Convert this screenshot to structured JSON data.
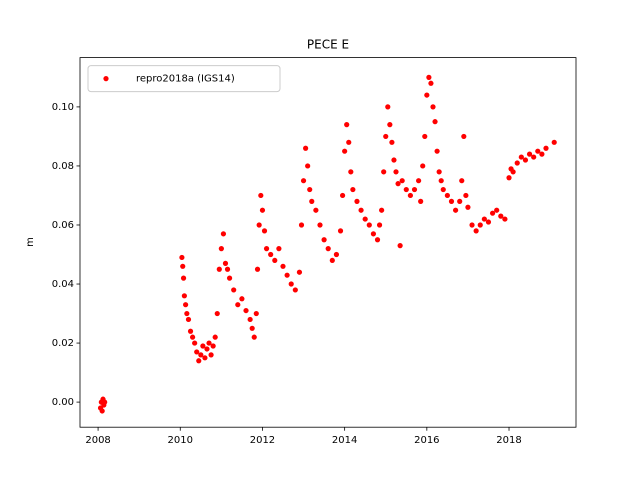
{
  "chart_data": {
    "type": "scatter",
    "title": "PECE E",
    "y_label": "m",
    "legend": "upper left",
    "marker_size": 2.6,
    "x": [
      2008.06,
      2008.08,
      2008.1,
      2008.12,
      2008.14,
      2008.16,
      2010.04,
      2010.06,
      2010.08,
      2010.1,
      2010.13,
      2010.16,
      2010.2,
      2010.25,
      2010.3,
      2010.35,
      2010.4,
      2010.45,
      2010.5,
      2010.55,
      2010.6,
      2010.65,
      2010.7,
      2010.75,
      2010.8,
      2010.85,
      2010.9,
      2010.95,
      2011.0,
      2011.05,
      2011.1,
      2011.15,
      2011.2,
      2011.3,
      2011.4,
      2011.5,
      2011.6,
      2011.7,
      2011.75,
      2011.8,
      2011.85,
      2011.88,
      2011.92,
      2011.96,
      2012.0,
      2012.05,
      2012.1,
      2012.2,
      2012.3,
      2012.4,
      2012.5,
      2012.6,
      2012.7,
      2012.8,
      2012.9,
      2012.95,
      2013.0,
      2013.05,
      2013.1,
      2013.15,
      2013.2,
      2013.3,
      2013.4,
      2013.5,
      2013.6,
      2013.7,
      2013.8,
      2013.9,
      2013.95,
      2014.0,
      2014.05,
      2014.1,
      2014.15,
      2014.2,
      2014.3,
      2014.4,
      2014.5,
      2014.6,
      2014.7,
      2014.8,
      2014.85,
      2014.9,
      2014.95,
      2015.0,
      2015.05,
      2015.1,
      2015.15,
      2015.2,
      2015.25,
      2015.3,
      2015.35,
      2015.4,
      2015.5,
      2015.6,
      2015.7,
      2015.8,
      2015.85,
      2015.9,
      2015.95,
      2016.0,
      2016.05,
      2016.1,
      2016.15,
      2016.2,
      2016.25,
      2016.3,
      2016.35,
      2016.4,
      2016.5,
      2016.6,
      2016.7,
      2016.8,
      2016.85,
      2016.9,
      2016.95,
      2017.0,
      2017.1,
      2017.2,
      2017.3,
      2017.4,
      2017.5,
      2017.6,
      2017.7,
      2017.8,
      2017.9,
      2018.0,
      2018.05,
      2018.1,
      2018.2,
      2018.3,
      2018.4,
      2018.5,
      2018.6,
      2018.7,
      2018.8,
      2018.9,
      2019.1
    ],
    "series": [
      {
        "name": "repro2018a (IGS14)",
        "color": "#ff0000",
        "values": [
          -0.002,
          0.0,
          -0.003,
          0.001,
          -0.001,
          0.0,
          0.049,
          0.046,
          0.042,
          0.036,
          0.033,
          0.03,
          0.028,
          0.024,
          0.022,
          0.02,
          0.017,
          0.014,
          0.016,
          0.019,
          0.015,
          0.018,
          0.02,
          0.016,
          0.019,
          0.022,
          0.03,
          0.045,
          0.052,
          0.057,
          0.047,
          0.045,
          0.042,
          0.038,
          0.033,
          0.035,
          0.031,
          0.028,
          0.025,
          0.022,
          0.03,
          0.045,
          0.06,
          0.07,
          0.065,
          0.058,
          0.052,
          0.05,
          0.048,
          0.052,
          0.046,
          0.043,
          0.04,
          0.038,
          0.044,
          0.06,
          0.075,
          0.086,
          0.08,
          0.072,
          0.068,
          0.065,
          0.06,
          0.055,
          0.052,
          0.048,
          0.05,
          0.058,
          0.07,
          0.085,
          0.094,
          0.088,
          0.078,
          0.072,
          0.068,
          0.065,
          0.062,
          0.06,
          0.057,
          0.055,
          0.06,
          0.065,
          0.078,
          0.09,
          0.1,
          0.094,
          0.088,
          0.082,
          0.078,
          0.074,
          0.053,
          0.075,
          0.072,
          0.07,
          0.072,
          0.075,
          0.068,
          0.08,
          0.09,
          0.104,
          0.11,
          0.108,
          0.1,
          0.095,
          0.085,
          0.078,
          0.075,
          0.072,
          0.07,
          0.068,
          0.065,
          0.068,
          0.075,
          0.09,
          0.07,
          0.066,
          0.06,
          0.058,
          0.06,
          0.062,
          0.061,
          0.064,
          0.065,
          0.063,
          0.062,
          0.076,
          0.079,
          0.078,
          0.081,
          0.083,
          0.082,
          0.084,
          0.083,
          0.085,
          0.084,
          0.086,
          0.088
        ]
      }
    ],
    "xlim": [
      2007.56,
      2019.63
    ],
    "xticks": [
      2008,
      2010,
      2012,
      2014,
      2016,
      2018
    ],
    "ylim": [
      -0.0085,
      0.1167
    ],
    "yticks": [
      {
        "value": 0,
        "label": "0.00"
      },
      {
        "value": 0.02,
        "label": "0.02"
      },
      {
        "value": 0.04,
        "label": "0.04"
      },
      {
        "value": 0.06,
        "label": "0.06"
      },
      {
        "value": 0.08,
        "label": "0.08"
      },
      {
        "value": 0.1,
        "label": "0.10"
      }
    ]
  }
}
